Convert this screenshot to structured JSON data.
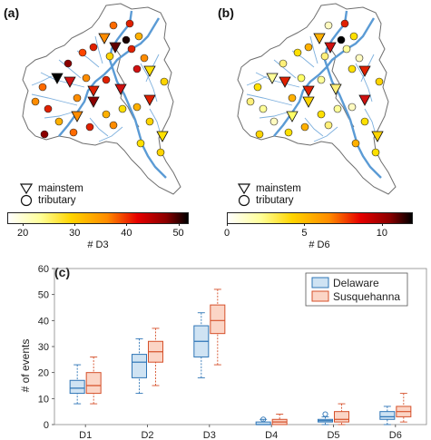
{
  "panels": {
    "a": {
      "label": "(a)",
      "colorbar_label": "# D3",
      "ticks": [
        "20",
        "30",
        "40",
        "50"
      ],
      "tick_values": [
        20,
        30,
        40,
        50
      ],
      "range": [
        17,
        52
      ]
    },
    "b": {
      "label": "(b)",
      "colorbar_label": "# D6",
      "ticks": [
        "0",
        "5",
        "10"
      ],
      "tick_values": [
        0,
        5,
        10
      ],
      "range": [
        0,
        12
      ]
    }
  },
  "legend": {
    "mainstem": "mainstem",
    "tributary": "tributary"
  },
  "colors": {
    "river": "#5b9bd5",
    "delaware_fill": "#cfe3f3",
    "delaware_edge": "#2e75b6",
    "susquehanna_fill": "#fbd5c6",
    "susquehanna_edge": "#d5502a"
  },
  "chart_data": {
    "type": "box",
    "title": "(c)",
    "ylabel": "# of events",
    "xlabel": "",
    "ylim": [
      0,
      60
    ],
    "yticks": [
      "0",
      "10",
      "20",
      "30",
      "40",
      "50",
      "60"
    ],
    "categories": [
      "D1",
      "D2",
      "D3",
      "D4",
      "D5",
      "D6"
    ],
    "legend_position": "top-right",
    "series": [
      {
        "name": "Delaware",
        "boxes": [
          {
            "min": 8,
            "q1": 12,
            "median": 14,
            "q3": 17,
            "max": 23,
            "outliers": []
          },
          {
            "min": 12,
            "q1": 18,
            "median": 24,
            "q3": 27,
            "max": 33,
            "outliers": []
          },
          {
            "min": 18,
            "q1": 26,
            "median": 32,
            "q3": 38,
            "max": 43,
            "outliers": []
          },
          {
            "min": 0,
            "q1": 0,
            "median": 0,
            "q3": 1,
            "max": 2,
            "outliers": [
              2
            ]
          },
          {
            "min": 0,
            "q1": 1,
            "median": 1.5,
            "q3": 2,
            "max": 3,
            "outliers": [
              4
            ]
          },
          {
            "min": 0,
            "q1": 2,
            "median": 3,
            "q3": 5,
            "max": 7,
            "outliers": []
          }
        ]
      },
      {
        "name": "Susquehanna",
        "boxes": [
          {
            "min": 8,
            "q1": 12,
            "median": 15,
            "q3": 20,
            "max": 26,
            "outliers": []
          },
          {
            "min": 15,
            "q1": 24,
            "median": 28,
            "q3": 32,
            "max": 37,
            "outliers": []
          },
          {
            "min": 23,
            "q1": 35,
            "median": 40,
            "q3": 46,
            "max": 52,
            "outliers": []
          },
          {
            "min": 0,
            "q1": 0,
            "median": 1,
            "q3": 2,
            "max": 4,
            "outliers": []
          },
          {
            "min": 0,
            "q1": 1,
            "median": 2,
            "q3": 5,
            "max": 8,
            "outliers": []
          },
          {
            "min": 1,
            "q1": 3,
            "median": 5,
            "q3": 7,
            "max": 12,
            "outliers": []
          }
        ]
      }
    ]
  }
}
